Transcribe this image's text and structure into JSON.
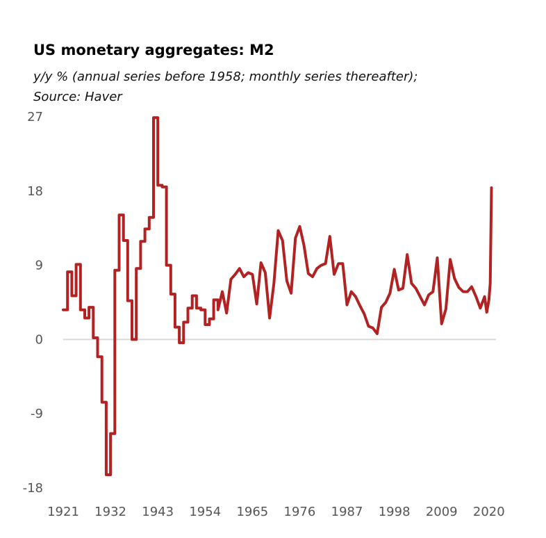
{
  "chart_data": {
    "type": "line",
    "title": "US monetary aggregates: M2",
    "subtitle_lines": [
      "y/y % (annual series before 1958; monthly series thereafter);",
      "Source: Haver"
    ],
    "xlabel": "",
    "ylabel": "",
    "xlim": [
      1921,
      2021
    ],
    "ylim": [
      -18,
      27
    ],
    "y_ticks": [
      "27",
      "18",
      "9",
      "0",
      "-9",
      "-18"
    ],
    "x_ticks": [
      "1921",
      "1932",
      "1943",
      "1954",
      "1965",
      "1976",
      "1987",
      "1998",
      "2009",
      "2020"
    ],
    "grid": false,
    "zero_line": true,
    "line_color": "#b22222",
    "zero_line_color": "#d9d9d9",
    "series": [
      {
        "x": [
          1921,
          1922,
          1922,
          1923,
          1923,
          1924,
          1924,
          1925,
          1925,
          1926,
          1926,
          1927,
          1927,
          1928,
          1928,
          1929,
          1929,
          1930,
          1930,
          1931,
          1931,
          1932,
          1932,
          1933,
          1933,
          1934,
          1934,
          1935,
          1935,
          1936,
          1936,
          1937,
          1937,
          1938,
          1938,
          1939,
          1939,
          1940,
          1940,
          1941,
          1941,
          1942,
          1942,
          1943,
          1943,
          1944,
          1944,
          1945,
          1945,
          1946,
          1946,
          1947,
          1947,
          1948,
          1948,
          1949,
          1949,
          1950,
          1950,
          1951,
          1951,
          1952,
          1952,
          1953,
          1953,
          1954,
          1954,
          1955,
          1955,
          1956,
          1956,
          1957,
          1957,
          1958,
          1959,
          1960,
          1961,
          1962,
          1963,
          1964,
          1965,
          1966,
          1967,
          1968,
          1969,
          1970,
          1971,
          1972,
          1973,
          1974,
          1975,
          1976,
          1977,
          1978,
          1979,
          1980,
          1981,
          1982,
          1983,
          1984,
          1985,
          1986,
          1987,
          1988,
          1989,
          1990,
          1991,
          1992,
          1993,
          1994,
          1995,
          1996,
          1997,
          1998,
          1999,
          2000,
          2001,
          2002,
          2003,
          2004,
          2005,
          2006,
          2007,
          2008,
          2009,
          2010,
          2011,
          2012,
          2013,
          2014,
          2015,
          2016,
          2017,
          2018,
          2019,
          2019.5,
          2020,
          2020.3,
          2020.6
        ],
        "values": [
          3.6,
          3.6,
          8.2,
          8.2,
          5.3,
          5.3,
          9.1,
          9.1,
          3.6,
          3.6,
          2.6,
          2.6,
          3.9,
          3.9,
          0.2,
          0.2,
          -2.1,
          -2.1,
          -7.6,
          -7.6,
          -16.4,
          -16.4,
          -11.4,
          -11.4,
          8.4,
          8.4,
          15.1,
          15.1,
          12.0,
          12.0,
          4.7,
          4.7,
          0.0,
          0.0,
          8.6,
          8.6,
          11.9,
          11.9,
          13.4,
          13.4,
          14.8,
          14.8,
          26.9,
          26.9,
          18.7,
          18.7,
          18.5,
          18.5,
          9.0,
          9.0,
          5.5,
          5.5,
          1.5,
          1.5,
          -0.4,
          -0.4,
          2.1,
          2.1,
          3.8,
          3.8,
          5.3,
          5.3,
          3.8,
          3.8,
          3.6,
          3.6,
          1.8,
          1.8,
          2.5,
          2.5,
          4.8,
          4.8,
          3.6,
          5.8,
          3.2,
          7.3,
          7.9,
          8.6,
          7.6,
          8.1,
          7.9,
          4.3,
          9.3,
          8.1,
          2.6,
          6.8,
          13.2,
          12.0,
          7.1,
          5.6,
          12.3,
          13.7,
          11.4,
          8.0,
          7.6,
          8.6,
          9.0,
          9.2,
          12.5,
          7.9,
          9.2,
          9.2,
          4.2,
          5.8,
          5.2,
          4.1,
          3.1,
          1.6,
          1.4,
          0.7,
          3.9,
          4.5,
          5.6,
          8.5,
          6.0,
          6.2,
          10.3,
          6.8,
          6.2,
          5.2,
          4.2,
          5.4,
          5.8,
          9.9,
          1.9,
          3.7,
          9.7,
          7.4,
          6.3,
          5.8,
          5.8,
          6.4,
          5.2,
          3.8,
          5.2,
          3.3,
          4.8,
          6.8,
          18.4
        ]
      }
    ]
  }
}
